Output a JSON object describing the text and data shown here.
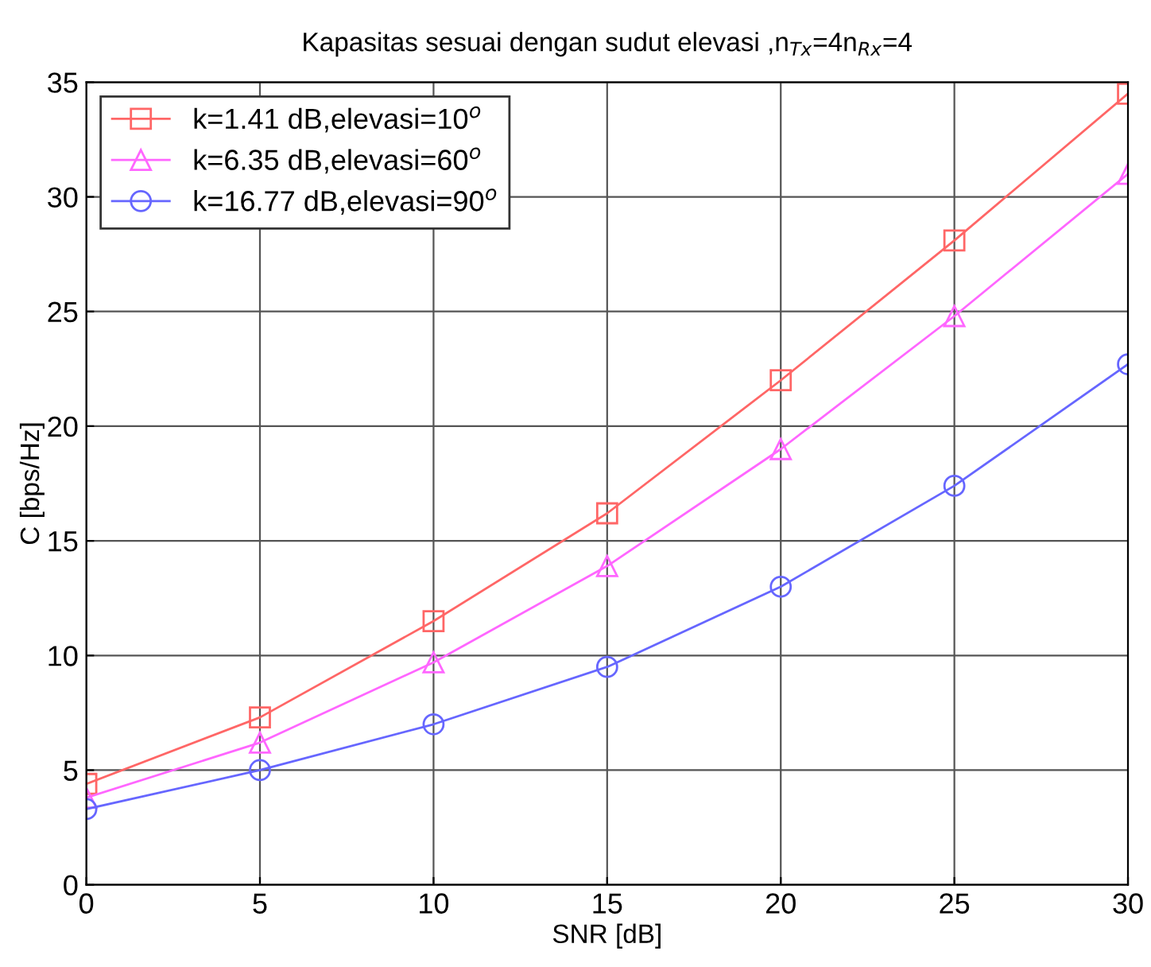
{
  "chart_data": {
    "type": "line",
    "title": "Kapasitas sesuai dengan sudut elevasi ,n$_{Tx}$=4n$_{Rx}$=4",
    "xlabel": "SNR [dB]",
    "ylabel": "C [bps/Hz]",
    "x": [
      0,
      5,
      10,
      15,
      20,
      25,
      30
    ],
    "series": [
      {
        "name": "k=1.41 dB,elevasi=10$^{o}$",
        "color": "#ff6666",
        "marker": "square",
        "values": [
          4.4,
          7.3,
          11.5,
          16.2,
          22.0,
          28.1,
          34.5
        ]
      },
      {
        "name": "k=6.35 dB,elevasi=60$^{o}$",
        "color": "#ff66ff",
        "marker": "triangle",
        "values": [
          3.8,
          6.2,
          9.7,
          13.9,
          19.0,
          24.8,
          31.0
        ]
      },
      {
        "name": "k=16.77 dB,elevasi=90$^{o}$",
        "color": "#6666ff",
        "marker": "circle",
        "values": [
          3.3,
          5.0,
          7.0,
          9.5,
          13.0,
          17.4,
          22.7
        ]
      }
    ],
    "xlim": [
      0,
      30
    ],
    "xticks": [
      0,
      5,
      10,
      15,
      20,
      25,
      30
    ],
    "ylim": [
      0,
      35
    ],
    "yticks": [
      0,
      5,
      10,
      15,
      20,
      25,
      30,
      35
    ],
    "grid": true,
    "legend": "top left",
    "line_style": "solid"
  }
}
